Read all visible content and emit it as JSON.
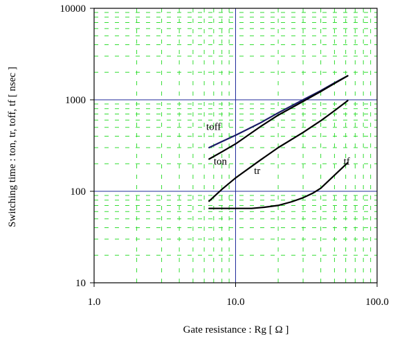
{
  "chart_data": {
    "type": "line",
    "x_scale": "log",
    "y_scale": "log",
    "xlim": [
      1.0,
      100.0
    ],
    "ylim": [
      10,
      10000
    ],
    "xlabel": "Gate resistance  :  Rg  [ Ω ]",
    "ylabel": "Switching time  :  ton, tr, toff, tf  [ nsec ]",
    "x_ticks": [
      {
        "value": 1,
        "label": "1.0"
      },
      {
        "value": 10,
        "label": "10.0"
      },
      {
        "value": 100,
        "label": "100.0"
      }
    ],
    "y_ticks": [
      {
        "value": 10,
        "label": "10"
      },
      {
        "value": 100,
        "label": "100"
      },
      {
        "value": 1000,
        "label": "1000"
      },
      {
        "value": 10000,
        "label": "10000"
      }
    ],
    "grid": {
      "major": true,
      "minor": true,
      "major_color": "#1f2a9a",
      "minor_color": "#33dd33"
    },
    "series": [
      {
        "name": "toff",
        "color": "#1a1a66",
        "points": [
          [
            6.5,
            300
          ],
          [
            8,
            350
          ],
          [
            10,
            410
          ],
          [
            15,
            560
          ],
          [
            20,
            720
          ],
          [
            30,
            1000
          ],
          [
            40,
            1260
          ],
          [
            50,
            1530
          ],
          [
            62,
            1830
          ]
        ]
      },
      {
        "name": "ton",
        "color": "#000000",
        "points": [
          [
            6.5,
            225
          ],
          [
            8,
            270
          ],
          [
            10,
            330
          ],
          [
            15,
            510
          ],
          [
            20,
            680
          ],
          [
            30,
            960
          ],
          [
            40,
            1230
          ],
          [
            50,
            1510
          ],
          [
            62,
            1830
          ]
        ]
      },
      {
        "name": "tr",
        "color": "#000000",
        "points": [
          [
            6.5,
            78
          ],
          [
            8,
            105
          ],
          [
            10,
            140
          ],
          [
            15,
            220
          ],
          [
            20,
            300
          ],
          [
            30,
            440
          ],
          [
            40,
            590
          ],
          [
            50,
            760
          ],
          [
            62,
            980
          ]
        ]
      },
      {
        "name": "tf",
        "color": "#000000",
        "points": [
          [
            6.5,
            65
          ],
          [
            8,
            65
          ],
          [
            10,
            65
          ],
          [
            13,
            65
          ],
          [
            16,
            67
          ],
          [
            20,
            70
          ],
          [
            25,
            77
          ],
          [
            30,
            85
          ],
          [
            35,
            95
          ],
          [
            40,
            108
          ],
          [
            50,
            150
          ],
          [
            62,
            205
          ]
        ]
      }
    ],
    "annotations": [
      {
        "text": "toff",
        "x": 6.2,
        "y": 470
      },
      {
        "text": "ton",
        "x": 7.0,
        "y": 195
      },
      {
        "text": "tr",
        "x": 13.5,
        "y": 155
      },
      {
        "text": "tf",
        "x": 58,
        "y": 195
      }
    ]
  }
}
